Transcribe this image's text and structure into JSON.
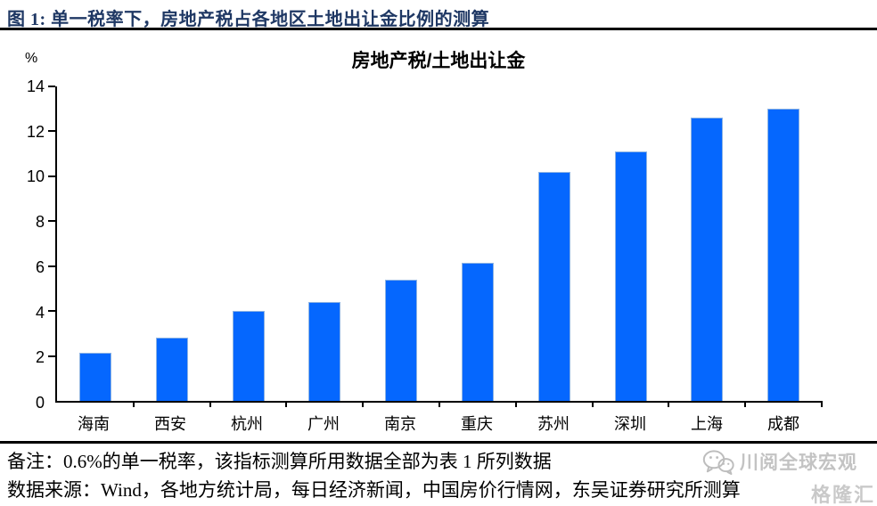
{
  "header": {
    "figure_title": "图 1:  单一税率下，房地产税占各地区土地出让金比例的测算"
  },
  "chart_data": {
    "type": "bar",
    "title": "房地产税/土地出让金",
    "unit_label": "%",
    "categories": [
      "海南",
      "西安",
      "杭州",
      "广州",
      "南京",
      "重庆",
      "苏州",
      "深圳",
      "上海",
      "成都"
    ],
    "values": [
      2.15,
      2.8,
      4.0,
      4.4,
      5.4,
      6.15,
      10.2,
      11.1,
      12.6,
      13.0
    ],
    "ylim": [
      0,
      14
    ],
    "yticks": [
      0,
      2,
      4,
      6,
      8,
      10,
      12,
      14
    ],
    "grid": false,
    "legend": false,
    "bar_color": "#0567FE",
    "bar_edge_color": "#8EB4E3"
  },
  "notes": {
    "remark": "备注：0.6%的单一税率，该指标测算所用数据全部为表 1 所列数据",
    "source": "数据来源：Wind，各地方统计局，每日经济新闻，中国房价行情网，东吴证券研究所测算"
  },
  "watermark": {
    "icon": "wechat-icon",
    "text": "川阅全球宏观",
    "corner_logo": "格隆汇"
  },
  "colors": {
    "title_navy": "#1F3864",
    "watermark_gray": "#BDBDBD"
  }
}
